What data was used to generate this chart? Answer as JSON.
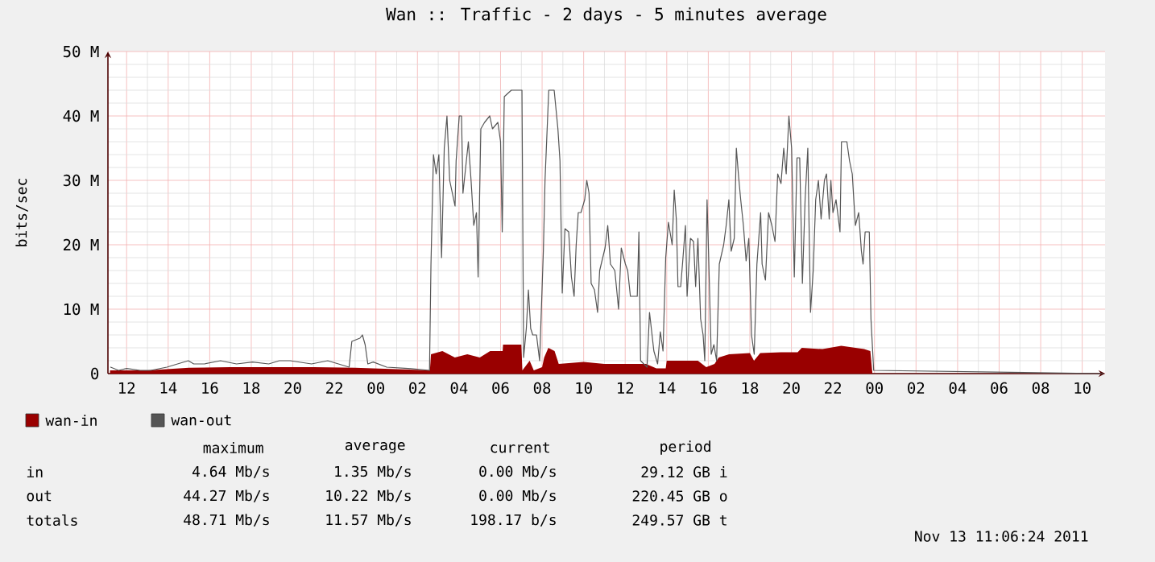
{
  "chart_data": {
    "type": "line",
    "title": "Wan :: Traffic - 2 days - 5 minutes average",
    "ylabel": "bits/sec",
    "xlim": [
      11.1,
      59.1
    ],
    "ylim": [
      0,
      50
    ],
    "xticks": [
      {
        "value": 12,
        "label": "12"
      },
      {
        "value": 14,
        "label": "14"
      },
      {
        "value": 16,
        "label": "16"
      },
      {
        "value": 18,
        "label": "18"
      },
      {
        "value": 20,
        "label": "20"
      },
      {
        "value": 22,
        "label": "22"
      },
      {
        "value": 24,
        "label": "00"
      },
      {
        "value": 26,
        "label": "02"
      },
      {
        "value": 28,
        "label": "04"
      },
      {
        "value": 30,
        "label": "06"
      },
      {
        "value": 32,
        "label": "08"
      },
      {
        "value": 34,
        "label": "10"
      },
      {
        "value": 36,
        "label": "12"
      },
      {
        "value": 38,
        "label": "14"
      },
      {
        "value": 40,
        "label": "16"
      },
      {
        "value": 42,
        "label": "18"
      },
      {
        "value": 44,
        "label": "20"
      },
      {
        "value": 46,
        "label": "22"
      },
      {
        "value": 48,
        "label": "00"
      },
      {
        "value": 50,
        "label": "02"
      },
      {
        "value": 52,
        "label": "04"
      },
      {
        "value": 54,
        "label": "06"
      },
      {
        "value": 56,
        "label": "08"
      },
      {
        "value": 58,
        "label": "10"
      }
    ],
    "yticks": [
      0,
      {
        "value": 10,
        "label": "10 M"
      },
      {
        "value": 20,
        "label": "20 M"
      },
      {
        "value": 30,
        "label": "30 M"
      },
      {
        "value": 40,
        "label": "40 M"
      },
      {
        "value": 50,
        "label": "50 M"
      }
    ],
    "grid": true,
    "legend": "bottom",
    "series": [
      {
        "name": "wan-in",
        "type": "area",
        "color": "#990000",
        "x": [
          11.2,
          13,
          15,
          17,
          19,
          21,
          23,
          25,
          26.6,
          26.65,
          27.2,
          27.8,
          28.4,
          29.0,
          29.5,
          30.1,
          30.12,
          31.0,
          31.05,
          31.4,
          31.6,
          32.0,
          32.1,
          32.3,
          32.6,
          32.8,
          34,
          35,
          36,
          37,
          37.5,
          37.95,
          38.0,
          39.5,
          39.9,
          40.3,
          40.5,
          41,
          42,
          42.2,
          42.5,
          43.5,
          44.3,
          44.5,
          45.5,
          46.4,
          47.5,
          47.8,
          47.9,
          59
        ],
        "values": [
          0.5,
          0.5,
          0.9,
          1.0,
          1.0,
          1.0,
          0.9,
          0.7,
          0.5,
          3,
          3.5,
          2.5,
          3,
          2.5,
          3.5,
          3.5,
          4.5,
          4.5,
          0.5,
          2,
          0.5,
          1,
          2.5,
          4,
          3.5,
          1.5,
          1.8,
          1.5,
          1.5,
          1.5,
          0.8,
          0.8,
          2,
          2,
          1,
          1.5,
          2.5,
          3,
          3.2,
          2,
          3.2,
          3.3,
          3.3,
          4,
          3.8,
          4.3,
          3.8,
          3.5,
          0,
          0
        ]
      },
      {
        "name": "wan-out",
        "color": "#555555",
        "x": [
          11.23,
          11.61,
          12,
          12.65,
          13.16,
          13.94,
          14.45,
          14.97,
          15.23,
          15.74,
          16.52,
          17.29,
          18.06,
          18.84,
          19.35,
          19.87,
          20.9,
          21.68,
          22.71,
          22.84,
          23.23,
          23.35,
          23.48,
          23.61,
          23.87,
          24.52,
          25.55,
          26.58,
          26.65,
          26.77,
          26.9,
          27.03,
          27.16,
          27.29,
          27.42,
          27.55,
          27.68,
          27.81,
          27.86,
          28.01,
          28.12,
          28.19,
          28.32,
          28.45,
          28.58,
          28.71,
          28.84,
          28.92,
          29.05,
          29.23,
          29.48,
          29.61,
          29.87,
          30.0,
          30.08,
          30.18,
          30.52,
          30.9,
          31.03,
          31.11,
          31.24,
          31.34,
          31.45,
          31.55,
          31.73,
          31.88,
          32.06,
          32.14,
          32.32,
          32.58,
          32.76,
          32.86,
          32.97,
          33.1,
          33.28,
          33.41,
          33.54,
          33.64,
          33.74,
          33.87,
          34.05,
          34.15,
          34.26,
          34.36,
          34.52,
          34.67,
          34.77,
          35.03,
          35.16,
          35.29,
          35.5,
          35.68,
          35.81,
          36.01,
          36.12,
          36.25,
          36.58,
          36.66,
          36.74,
          37.05,
          37.17,
          37.38,
          37.56,
          37.69,
          37.82,
          37.95,
          38.08,
          38.26,
          38.36,
          38.46,
          38.54,
          38.67,
          38.77,
          38.9,
          38.98,
          39.14,
          39.29,
          39.39,
          39.5,
          39.63,
          39.75,
          39.83,
          39.94,
          40.01,
          40.14,
          40.27,
          40.4,
          40.53,
          40.74,
          40.86,
          40.99,
          41.1,
          41.25,
          41.35,
          41.46,
          41.56,
          41.69,
          41.82,
          41.95,
          42.08,
          42.21,
          42.34,
          42.52,
          42.59,
          42.75,
          42.9,
          43.06,
          43.21,
          43.34,
          43.5,
          43.63,
          43.75,
          43.88,
          44.01,
          44.14,
          44.27,
          44.4,
          44.53,
          44.66,
          44.79,
          44.92,
          45.05,
          45.17,
          45.3,
          45.43,
          45.59,
          45.69,
          45.82,
          45.9,
          46.0,
          46.15,
          46.34,
          46.41,
          46.67,
          46.8,
          46.93,
          47.08,
          47.24,
          47.37,
          47.45,
          47.55,
          47.75,
          47.83,
          47.96,
          59
        ],
        "values": [
          1,
          0.5,
          0.8,
          0.5,
          0.5,
          1,
          1.5,
          2,
          1.5,
          1.5,
          2,
          1.5,
          1.8,
          1.5,
          2,
          2,
          1.5,
          2,
          1,
          5,
          5.5,
          6,
          4.5,
          1.5,
          1.8,
          1,
          0.8,
          0.5,
          17,
          34,
          31,
          34,
          18,
          35,
          40,
          30,
          28,
          26,
          33,
          40,
          40,
          28,
          32,
          36,
          30,
          23,
          25,
          15,
          38,
          39,
          40,
          38,
          39,
          36,
          22,
          43,
          44,
          44,
          44,
          2.5,
          7,
          13,
          7,
          6,
          6,
          2,
          19,
          30,
          44,
          44,
          38,
          33,
          12.5,
          22.5,
          22,
          15,
          12,
          20,
          25,
          25,
          27,
          30,
          28,
          14,
          13,
          9.5,
          16,
          19.5,
          23,
          17,
          16,
          10,
          19.5,
          17,
          16,
          12,
          12,
          22,
          2,
          1,
          9.5,
          3.5,
          1.5,
          6.5,
          3.5,
          18,
          23.5,
          20,
          28.5,
          24,
          13.5,
          13.5,
          17.5,
          23,
          12,
          21,
          20.5,
          13.5,
          21,
          8.5,
          6,
          2,
          27,
          19,
          3,
          4.5,
          2,
          17,
          20,
          23,
          27,
          19,
          21,
          35,
          30.5,
          27,
          23,
          17.5,
          21,
          6,
          3,
          17,
          25,
          17,
          14.5,
          25,
          23,
          20.5,
          31,
          29.5,
          35,
          31,
          40,
          35,
          15,
          33.5,
          33.5,
          14,
          27,
          35,
          9.5,
          16,
          27,
          30,
          24,
          30,
          31,
          24,
          30,
          25,
          27,
          22,
          36,
          36,
          33,
          31,
          23,
          25,
          19,
          17,
          22,
          22,
          8.5,
          0.5,
          0
        ]
      }
    ],
    "annotations": [
      "maximum",
      "average",
      "current",
      "period",
      "in",
      "4.64 Mb/s",
      "1.35 Mb/s",
      "0.00 Mb/s",
      "29.12 GB i",
      "out",
      "44.27 Mb/s",
      "10.22 Mb/s",
      "0.00 Mb/s",
      "220.45 GB o",
      "totals",
      "48.71 Mb/s",
      "11.57 Mb/s",
      "198.17  b/s",
      "249.57 GB t",
      "Nov 13 11:06:24 2011"
    ]
  }
}
